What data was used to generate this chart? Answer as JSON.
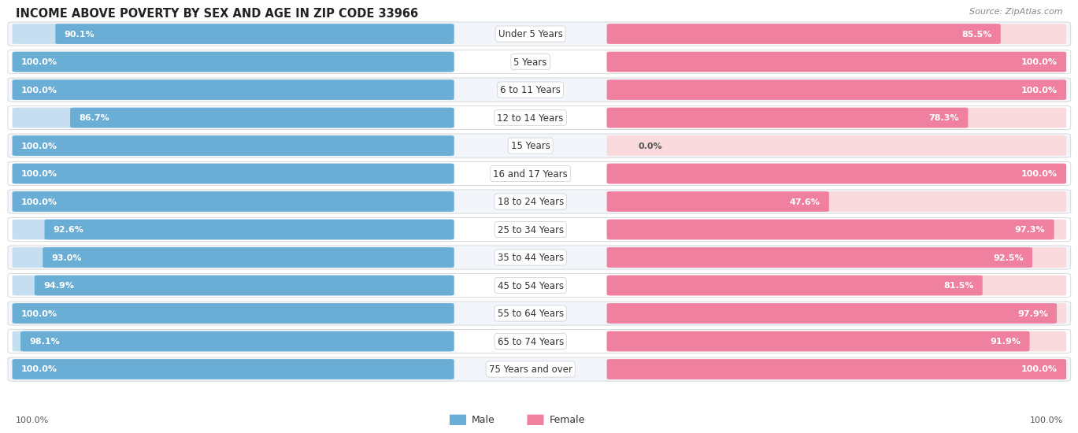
{
  "title": "INCOME ABOVE POVERTY BY SEX AND AGE IN ZIP CODE 33966",
  "source": "Source: ZipAtlas.com",
  "categories": [
    "Under 5 Years",
    "5 Years",
    "6 to 11 Years",
    "12 to 14 Years",
    "15 Years",
    "16 and 17 Years",
    "18 to 24 Years",
    "25 to 34 Years",
    "35 to 44 Years",
    "45 to 54 Years",
    "55 to 64 Years",
    "65 to 74 Years",
    "75 Years and over"
  ],
  "male_values": [
    90.1,
    100.0,
    100.0,
    86.7,
    100.0,
    100.0,
    100.0,
    92.6,
    93.0,
    94.9,
    100.0,
    98.1,
    100.0
  ],
  "female_values": [
    85.5,
    100.0,
    100.0,
    78.3,
    0.0,
    100.0,
    47.6,
    97.3,
    92.5,
    81.5,
    97.9,
    91.9,
    100.0
  ],
  "male_color": "#6aaed6",
  "female_color": "#f080a0",
  "male_color_light": "#c5dff0",
  "female_color_light": "#fadadd",
  "title_fontsize": 10.5,
  "label_fontsize": 8.5,
  "value_fontsize": 8,
  "legend_fontsize": 9,
  "source_fontsize": 8
}
